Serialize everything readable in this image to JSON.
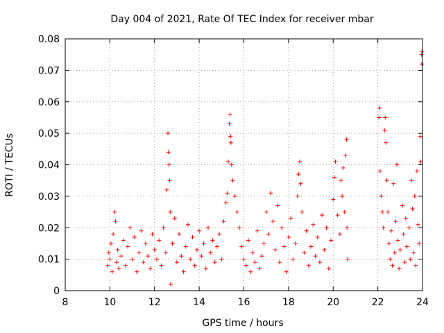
{
  "colors": {
    "series": "#ff0000",
    "grid": "#a0a0a0",
    "axis": "#000000",
    "background": "#ffffff"
  },
  "chart_data": {
    "type": "scatter",
    "title": "Day 004 of 2021, Rate Of TEC Index for receiver mbar",
    "xlabel": "GPS time / hours",
    "ylabel": "ROTI / TECUs",
    "xlim": [
      8,
      24
    ],
    "ylim": [
      0,
      0.08
    ],
    "grid": true,
    "marker": "plus",
    "x_ticks": [
      8,
      10,
      12,
      14,
      16,
      18,
      20,
      22,
      24
    ],
    "x_tick_labels": [
      "8",
      "10",
      "12",
      "14",
      "16",
      "18",
      "20",
      "22",
      "24"
    ],
    "y_ticks": [
      0,
      0.01,
      0.02,
      0.03,
      0.04,
      0.05,
      0.06,
      0.07,
      0.08
    ],
    "y_tick_labels": [
      "0",
      "0.01",
      "0.02",
      "0.03",
      "0.04",
      "0.05",
      "0.06",
      "0.07",
      "0.08"
    ],
    "series": [
      {
        "color": "#ff0000",
        "points": [
          [
            9.9,
            0.008
          ],
          [
            9.95,
            0.012
          ],
          [
            10.0,
            0.01
          ],
          [
            10.05,
            0.015
          ],
          [
            10.1,
            0.006
          ],
          [
            10.15,
            0.018
          ],
          [
            10.2,
            0.025
          ],
          [
            10.25,
            0.022
          ],
          [
            10.3,
            0.009
          ],
          [
            10.35,
            0.013
          ],
          [
            10.4,
            0.007
          ],
          [
            10.5,
            0.011
          ],
          [
            10.6,
            0.016
          ],
          [
            10.7,
            0.008
          ],
          [
            10.8,
            0.014
          ],
          [
            10.9,
            0.02
          ],
          [
            11.0,
            0.01
          ],
          [
            11.1,
            0.017
          ],
          [
            11.2,
            0.006
          ],
          [
            11.3,
            0.012
          ],
          [
            11.4,
            0.019
          ],
          [
            11.5,
            0.009
          ],
          [
            11.6,
            0.015
          ],
          [
            11.7,
            0.011
          ],
          [
            11.8,
            0.007
          ],
          [
            11.9,
            0.018
          ],
          [
            12.0,
            0.013
          ],
          [
            12.1,
            0.01
          ],
          [
            12.2,
            0.016
          ],
          [
            12.3,
            0.008
          ],
          [
            12.4,
            0.02
          ],
          [
            12.5,
            0.012
          ],
          [
            12.55,
            0.032
          ],
          [
            12.6,
            0.05
          ],
          [
            12.62,
            0.044
          ],
          [
            12.65,
            0.04
          ],
          [
            12.68,
            0.035
          ],
          [
            12.7,
            0.025
          ],
          [
            12.72,
            0.002
          ],
          [
            12.8,
            0.015
          ],
          [
            12.9,
            0.023
          ],
          [
            13.0,
            0.009
          ],
          [
            13.1,
            0.018
          ],
          [
            13.2,
            0.011
          ],
          [
            13.3,
            0.006
          ],
          [
            13.4,
            0.014
          ],
          [
            13.5,
            0.021
          ],
          [
            13.6,
            0.01
          ],
          [
            13.7,
            0.017
          ],
          [
            13.8,
            0.008
          ],
          [
            13.9,
            0.013
          ],
          [
            14.0,
            0.019
          ],
          [
            14.1,
            0.011
          ],
          [
            14.2,
            0.015
          ],
          [
            14.3,
            0.007
          ],
          [
            14.4,
            0.02
          ],
          [
            14.5,
            0.012
          ],
          [
            14.6,
            0.016
          ],
          [
            14.7,
            0.009
          ],
          [
            14.8,
            0.014
          ],
          [
            14.9,
            0.018
          ],
          [
            15.0,
            0.01
          ],
          [
            15.1,
            0.022
          ],
          [
            15.2,
            0.028
          ],
          [
            15.25,
            0.031
          ],
          [
            15.3,
            0.041
          ],
          [
            15.35,
            0.053
          ],
          [
            15.38,
            0.056
          ],
          [
            15.4,
            0.049
          ],
          [
            15.42,
            0.047
          ],
          [
            15.45,
            0.04
          ],
          [
            15.5,
            0.035
          ],
          [
            15.6,
            0.03
          ],
          [
            15.7,
            0.025
          ],
          [
            15.8,
            0.02
          ],
          [
            15.9,
            0.014
          ],
          [
            16.0,
            0.01
          ],
          [
            16.1,
            0.008
          ],
          [
            16.2,
            0.016
          ],
          [
            16.3,
            0.006
          ],
          [
            16.4,
            0.012
          ],
          [
            16.5,
            0.009
          ],
          [
            16.6,
            0.019
          ],
          [
            16.7,
            0.007
          ],
          [
            16.8,
            0.011
          ],
          [
            16.9,
            0.015
          ],
          [
            17.0,
            0.025
          ],
          [
            17.1,
            0.018
          ],
          [
            17.2,
            0.031
          ],
          [
            17.3,
            0.022
          ],
          [
            17.4,
            0.013
          ],
          [
            17.5,
            0.027
          ],
          [
            17.6,
            0.009
          ],
          [
            17.7,
            0.02
          ],
          [
            17.8,
            0.014
          ],
          [
            17.9,
            0.006
          ],
          [
            18.0,
            0.017
          ],
          [
            18.1,
            0.023
          ],
          [
            18.2,
            0.01
          ],
          [
            18.3,
            0.015
          ],
          [
            18.4,
            0.03
          ],
          [
            18.45,
            0.037
          ],
          [
            18.5,
            0.041
          ],
          [
            18.55,
            0.034
          ],
          [
            18.6,
            0.025
          ],
          [
            18.7,
            0.012
          ],
          [
            18.8,
            0.019
          ],
          [
            18.9,
            0.008
          ],
          [
            19.0,
            0.014
          ],
          [
            19.1,
            0.021
          ],
          [
            19.2,
            0.011
          ],
          [
            19.3,
            0.017
          ],
          [
            19.4,
            0.009
          ],
          [
            19.5,
            0.024
          ],
          [
            19.6,
            0.013
          ],
          [
            19.7,
            0.02
          ],
          [
            19.8,
            0.007
          ],
          [
            19.9,
            0.016
          ],
          [
            20.0,
            0.029
          ],
          [
            20.05,
            0.036
          ],
          [
            20.1,
            0.041
          ],
          [
            20.2,
            0.024
          ],
          [
            20.3,
            0.018
          ],
          [
            20.35,
            0.035
          ],
          [
            20.4,
            0.03
          ],
          [
            20.45,
            0.039
          ],
          [
            20.5,
            0.025
          ],
          [
            20.55,
            0.043
          ],
          [
            20.6,
            0.048
          ],
          [
            20.62,
            0.02
          ],
          [
            20.65,
            0.01
          ],
          [
            22.05,
            0.055
          ],
          [
            22.08,
            0.058
          ],
          [
            22.1,
            0.038
          ],
          [
            22.15,
            0.03
          ],
          [
            22.2,
            0.025
          ],
          [
            22.25,
            0.02
          ],
          [
            22.3,
            0.051
          ],
          [
            22.33,
            0.055
          ],
          [
            22.36,
            0.047
          ],
          [
            22.4,
            0.035
          ],
          [
            22.45,
            0.025
          ],
          [
            22.5,
            0.015
          ],
          [
            22.55,
            0.01
          ],
          [
            22.6,
            0.019
          ],
          [
            22.65,
            0.008
          ],
          [
            22.7,
            0.034
          ],
          [
            22.75,
            0.012
          ],
          [
            22.8,
            0.022
          ],
          [
            22.85,
            0.04
          ],
          [
            22.9,
            0.016
          ],
          [
            22.95,
            0.007
          ],
          [
            23.0,
            0.013
          ],
          [
            23.1,
            0.027
          ],
          [
            23.15,
            0.018
          ],
          [
            23.2,
            0.009
          ],
          [
            23.25,
            0.023
          ],
          [
            23.3,
            0.014
          ],
          [
            23.4,
            0.02
          ],
          [
            23.45,
            0.01
          ],
          [
            23.5,
            0.035
          ],
          [
            23.55,
            0.026
          ],
          [
            23.6,
            0.012
          ],
          [
            23.65,
            0.03
          ],
          [
            23.7,
            0.008
          ],
          [
            23.75,
            0.038
          ],
          [
            23.8,
            0.021
          ],
          [
            23.85,
            0.015
          ],
          [
            23.9,
            0.049
          ],
          [
            23.92,
            0.041
          ],
          [
            23.95,
            0.075
          ],
          [
            23.97,
            0.072
          ],
          [
            23.98,
            0.076
          ]
        ]
      }
    ]
  }
}
